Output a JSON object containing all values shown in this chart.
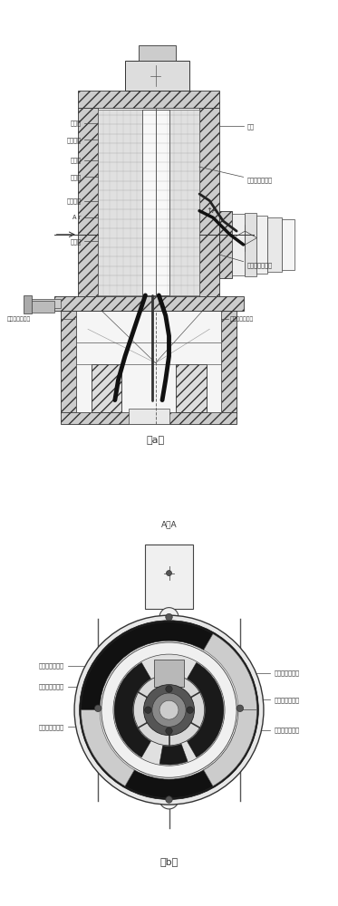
{
  "bg_color": "#ffffff",
  "line_color": "#444444",
  "dark_color": "#333333",
  "fig_width": 3.73,
  "fig_height": 10.0,
  "label_a": "（a）",
  "label_b": "（b）",
  "label_aa": "A－A",
  "labels_left_top": [
    "通讯环",
    "簧片组件",
    "转动稳",
    "信号环",
    "绝缘支架",
    "A r",
    "动力环"
  ],
  "label_shell": "壳体",
  "label_stator_comm": "定子端通讯电缆",
  "label_stator_power": "定子端动力电缆",
  "label_up_a": "↑A",
  "label_rotor_power_bot": "转子端动力电缆",
  "label_rotor_comm_bot": "转子端通讯电缆",
  "labels_b_left": [
    "转子端信号电缆",
    "定子端通讯电缆",
    "定子端动力电缆"
  ],
  "labels_b_right": [
    "转子端动力电缆",
    "转子端通讯电缆",
    "定子端信号电缆"
  ]
}
